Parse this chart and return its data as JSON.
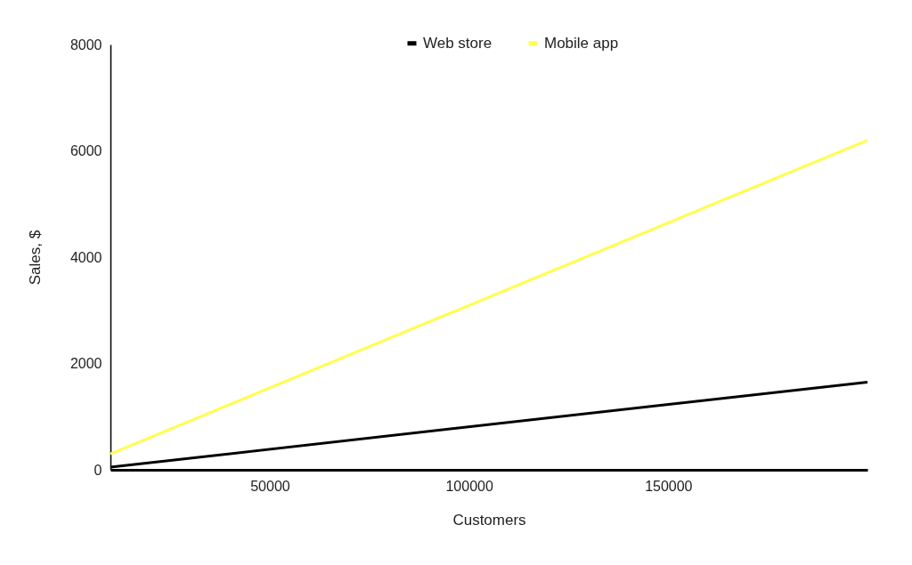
{
  "chart_data": {
    "type": "line",
    "xlabel": "Customers",
    "ylabel": "Sales, $",
    "x": [
      10000,
      200000
    ],
    "series": [
      {
        "name": "Web store",
        "color": "#000000",
        "values": [
          50,
          1650
        ]
      },
      {
        "name": "Mobile app",
        "color": "#ffff4d",
        "values": [
          300,
          6200
        ]
      }
    ],
    "xlim": [
      10000,
      200000
    ],
    "xticks": [
      50000,
      100000,
      150000
    ],
    "ylim": [
      0,
      8000
    ],
    "yticks": [
      0,
      2000,
      4000,
      6000,
      8000
    ],
    "grid": false,
    "legend": "top",
    "marker": "none",
    "line_style": "solid"
  }
}
